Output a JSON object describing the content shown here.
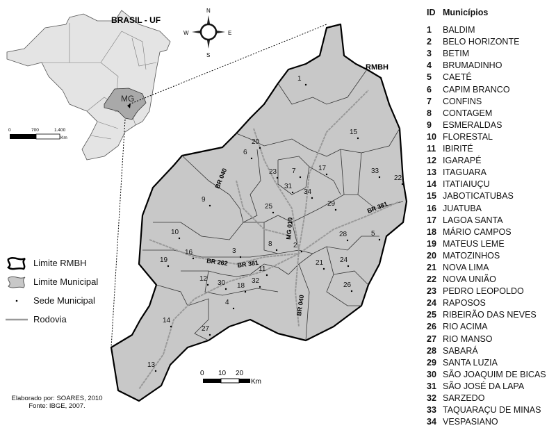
{
  "brasil_inset": {
    "title": "BRASIL - UF",
    "state_label": "MG",
    "scale_ticks": [
      "0",
      "700",
      "1.400"
    ],
    "scale_unit": "Km"
  },
  "compass": {
    "n": "N",
    "s": "S",
    "e": "E",
    "w": "W"
  },
  "region_label": "RMBH",
  "roads": [
    "BR 040",
    "MG 010",
    "BR 040",
    "BR 262",
    "BR 381",
    "BR 381"
  ],
  "scale": {
    "ticks": [
      "0",
      "10",
      "20"
    ],
    "unit": "Km"
  },
  "legend": [
    {
      "icon": "rmbh-boundary-icon",
      "label": "Limite RMBH"
    },
    {
      "icon": "municipal-boundary-icon",
      "label": "Limite Municipal"
    },
    {
      "icon": "dot-icon",
      "label": "Sede Municipal"
    },
    {
      "icon": "road-line-icon",
      "label": "Rodovia"
    }
  ],
  "credits": {
    "line1": "Elaborado por: SOARES, 2010",
    "line2": "Fonte: IBGE, 2007."
  },
  "colors": {
    "municipio_fill": "#c8c8c8",
    "brasil_fill": "#e4e4e4",
    "mg_fill": "#a9a9a9",
    "road": "#999999"
  },
  "municipios": {
    "header_id": "ID",
    "header_name": "Municípios",
    "items": [
      {
        "id": "1",
        "name": "BALDIM"
      },
      {
        "id": "2",
        "name": "BELO HORIZONTE"
      },
      {
        "id": "3",
        "name": "BETIM"
      },
      {
        "id": "4",
        "name": "BRUMADINHO"
      },
      {
        "id": "5",
        "name": "CAETÉ"
      },
      {
        "id": "6",
        "name": "CAPIM BRANCO"
      },
      {
        "id": "7",
        "name": "CONFINS"
      },
      {
        "id": "8",
        "name": "CONTAGEM"
      },
      {
        "id": "9",
        "name": "ESMERALDAS"
      },
      {
        "id": "10",
        "name": "FLORESTAL"
      },
      {
        "id": "11",
        "name": "IBIRITÉ"
      },
      {
        "id": "12",
        "name": "IGARAPÉ"
      },
      {
        "id": "13",
        "name": "ITAGUARA"
      },
      {
        "id": "14",
        "name": "ITATIAIUÇU"
      },
      {
        "id": "15",
        "name": "JABOTICATUBAS"
      },
      {
        "id": "16",
        "name": "JUATUBA"
      },
      {
        "id": "17",
        "name": "LAGOA SANTA"
      },
      {
        "id": "18",
        "name": "MÁRIO CAMPOS"
      },
      {
        "id": "19",
        "name": "MATEUS LEME"
      },
      {
        "id": "20",
        "name": "MATOZINHOS"
      },
      {
        "id": "21",
        "name": "NOVA LIMA"
      },
      {
        "id": "22",
        "name": "NOVA UNIÃO"
      },
      {
        "id": "23",
        "name": "PEDRO LEOPOLDO"
      },
      {
        "id": "24",
        "name": "RAPOSOS"
      },
      {
        "id": "25",
        "name": "RIBEIRÃO DAS NEVES"
      },
      {
        "id": "26",
        "name": "RIO ACIMA"
      },
      {
        "id": "27",
        "name": "RIO MANSO"
      },
      {
        "id": "28",
        "name": "SABARÁ"
      },
      {
        "id": "29",
        "name": "SANTA LUZIA"
      },
      {
        "id": "30",
        "name": "SÃO JOAQUIM DE BICAS"
      },
      {
        "id": "31",
        "name": "SÃO JOSÉ DA LAPA"
      },
      {
        "id": "32",
        "name": "SARZEDO"
      },
      {
        "id": "33",
        "name": "TAQUARAÇU DE MINAS"
      },
      {
        "id": "34",
        "name": "VESPASIANO"
      }
    ]
  }
}
